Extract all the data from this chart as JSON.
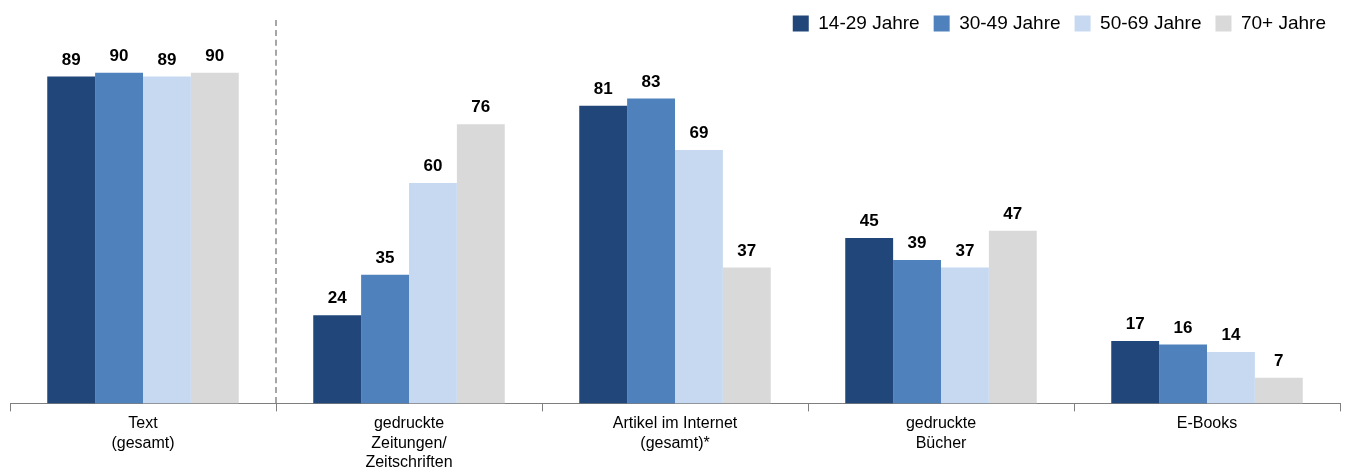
{
  "chart_data": {
    "type": "bar",
    "categories": [
      "Text\n(gesamt)",
      "gedruckte\nZeitungen/\nZeitschriften",
      "Artikel im Internet\n(gesamt)*",
      "gedruckte\nBücher",
      "E-Books"
    ],
    "series": [
      {
        "name": "14-29 Jahre",
        "color": "#21477a",
        "values": [
          89,
          24,
          81,
          45,
          17
        ]
      },
      {
        "name": "30-49 Jahre",
        "color": "#4f81bd",
        "values": [
          90,
          35,
          83,
          39,
          16
        ]
      },
      {
        "name": "50-69 Jahre",
        "color": "#c6d9f1",
        "values": [
          89,
          60,
          69,
          37,
          14
        ]
      },
      {
        "name": "70+ Jahre",
        "color": "#d9d9d9",
        "values": [
          90,
          76,
          37,
          47,
          7
        ]
      }
    ],
    "data_labels": true,
    "legend": "top right",
    "grid": false
  }
}
